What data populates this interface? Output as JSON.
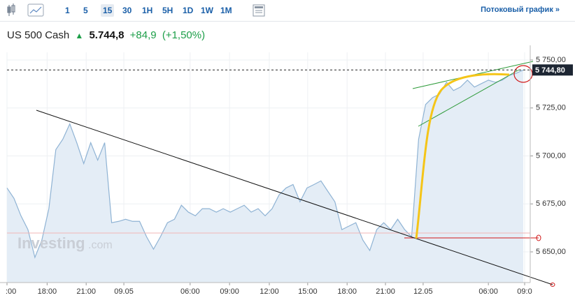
{
  "toolbar": {
    "intervals": [
      "1",
      "5",
      "15",
      "30",
      "1H",
      "5H",
      "1D",
      "1W",
      "1M"
    ],
    "selected": "15",
    "stream_link": "Потоковый график »"
  },
  "quote": {
    "name": "US 500 Cash",
    "price": "5.744,8",
    "change": "+84,9",
    "change_pct": "(+1,50%)"
  },
  "watermark": {
    "brand": "Investing",
    "suffix": ".com"
  },
  "chart_data": {
    "type": "area",
    "x": [
      0,
      2,
      4,
      6,
      8,
      10,
      12,
      14,
      16,
      18,
      20,
      22,
      24,
      26,
      28,
      30,
      32,
      34,
      36,
      38,
      40,
      42,
      44,
      46,
      48,
      50,
      52,
      54,
      56,
      58,
      60,
      62,
      64,
      66,
      68,
      70,
      72,
      74,
      76,
      78,
      80,
      82,
      84,
      86,
      88,
      90,
      92,
      94,
      96,
      98,
      100,
      102,
      104,
      106,
      108,
      110,
      112,
      114,
      116,
      118,
      120,
      122,
      124,
      126,
      128,
      130,
      132,
      134,
      136,
      138,
      140,
      142,
      144,
      146,
      148
    ],
    "series": [
      {
        "name": "US 500 Cash",
        "color": "#8fb3d4",
        "fill": "#e4edf6",
        "values": [
          5683.3,
          5677.9,
          5668.8,
          5661.6,
          5647.1,
          5656.2,
          5672.5,
          5703.3,
          5708.7,
          5716.7,
          5706.9,
          5696.0,
          5706.9,
          5697.8,
          5706.9,
          5665.2,
          5665.9,
          5667.0,
          5665.9,
          5665.9,
          5657.9,
          5651.4,
          5657.9,
          5665.2,
          5667.0,
          5674.3,
          5670.7,
          5668.8,
          5672.5,
          5672.5,
          5670.7,
          5672.5,
          5670.7,
          5672.5,
          5674.3,
          5670.7,
          5672.5,
          5668.8,
          5672.5,
          5679.7,
          5683.3,
          5685.1,
          5676.1,
          5683.3,
          5685.1,
          5687.0,
          5681.5,
          5676.1,
          5661.6,
          5663.4,
          5665.2,
          5656.2,
          5650.7,
          5661.6,
          5665.2,
          5661.6,
          5667.0,
          5661.6,
          5657.9,
          5708.7,
          5726.8,
          5730.4,
          5732.2,
          5738.4,
          5734.1,
          5735.9,
          5739.5,
          5735.9,
          5737.7,
          5739.5,
          5738.4,
          5739.5,
          5742.0,
          5743.1,
          5744.8
        ]
      }
    ],
    "last_price": {
      "value": 5744.8,
      "label": "5 744,80"
    },
    "xlim": [
      0,
      150
    ],
    "xticks": [
      {
        "value": 0,
        "label": ":00"
      },
      {
        "value": 11.5,
        "label": "18:00"
      },
      {
        "value": 22.7,
        "label": "21:00"
      },
      {
        "value": 33.5,
        "label": "09.05"
      },
      {
        "value": 52.5,
        "label": "06:00"
      },
      {
        "value": 63.8,
        "label": "09:00"
      },
      {
        "value": 75.2,
        "label": "12:00"
      },
      {
        "value": 86.2,
        "label": "15:00"
      },
      {
        "value": 97.5,
        "label": "18:00"
      },
      {
        "value": 108.5,
        "label": "21:00"
      },
      {
        "value": 119.3,
        "label": "12.05"
      },
      {
        "value": 138,
        "label": "06:00"
      },
      {
        "value": 148.4,
        "label": "09:0"
      }
    ],
    "ylim": [
      5634,
      5754
    ],
    "yticks": [
      {
        "value": 5650,
        "label": "5 650,00"
      },
      {
        "value": 5675,
        "label": "5 675,00"
      },
      {
        "value": 5700,
        "label": "5 700,00"
      },
      {
        "value": 5725,
        "label": "5 725,00"
      },
      {
        "value": 5750,
        "label": "5 750,00"
      }
    ],
    "grid": true
  }
}
